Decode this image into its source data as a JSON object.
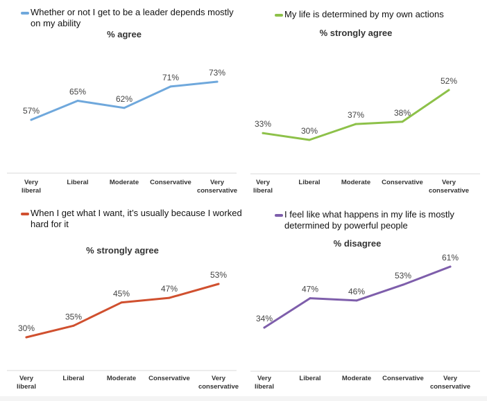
{
  "chart_data": [
    {
      "type": "line",
      "legend": "Whether or not I get to be a leader depends mostly on my ability",
      "title": "% agree",
      "categories": [
        "Very liberal",
        "Liberal",
        "Moderate",
        "Conservative",
        "Very conservative"
      ],
      "series": [
        {
          "name": "Whether or not I get to be a leader depends mostly on my ability",
          "values": [
            57,
            65,
            62,
            71,
            73
          ]
        }
      ],
      "labels": [
        "57%",
        "65%",
        "62%",
        "71%",
        "73%"
      ],
      "color": "#6FA8DC",
      "ylim": [
        50,
        80
      ],
      "xlabel": "",
      "ylabel": ""
    },
    {
      "type": "line",
      "legend": "My life is determined by my own actions",
      "title": "% strongly agree",
      "categories": [
        "Very liberal",
        "Liberal",
        "Moderate",
        "Conservative",
        "Very conservative"
      ],
      "series": [
        {
          "name": "My life is determined by my own actions",
          "values": [
            33,
            30,
            37,
            38,
            52
          ]
        }
      ],
      "labels": [
        "33%",
        "30%",
        "37%",
        "38%",
        "52%"
      ],
      "color": "#8DC149",
      "ylim": [
        25,
        55
      ],
      "xlabel": "",
      "ylabel": ""
    },
    {
      "type": "line",
      "legend": "When I get what I want, it’s usually because I worked hard for it",
      "title": "% strongly agree",
      "categories": [
        "Very liberal",
        "Liberal",
        "Moderate",
        "Conservative",
        "Very conservative"
      ],
      "series": [
        {
          "name": "When I get what I want, it’s usually because I worked hard for it",
          "values": [
            30,
            35,
            45,
            47,
            53
          ]
        }
      ],
      "labels": [
        "30%",
        "35%",
        "45%",
        "47%",
        "53%"
      ],
      "color": "#D0502F",
      "ylim": [
        25,
        55
      ],
      "xlabel": "",
      "ylabel": ""
    },
    {
      "type": "line",
      "legend": "I feel like what happens in my life is mostly determined by powerful people",
      "title": "% disagree",
      "categories": [
        "Very liberal",
        "Liberal",
        "Moderate",
        "Conservative",
        "Very conservative"
      ],
      "series": [
        {
          "name": "I feel like what happens in my life is mostly determined by powerful people",
          "values": [
            34,
            47,
            46,
            53,
            61
          ]
        }
      ],
      "labels": [
        "34%",
        "47%",
        "46%",
        "53%",
        "61%"
      ],
      "color": "#7E5EAB",
      "ylim": [
        30,
        65
      ],
      "xlabel": "",
      "ylabel": ""
    }
  ]
}
